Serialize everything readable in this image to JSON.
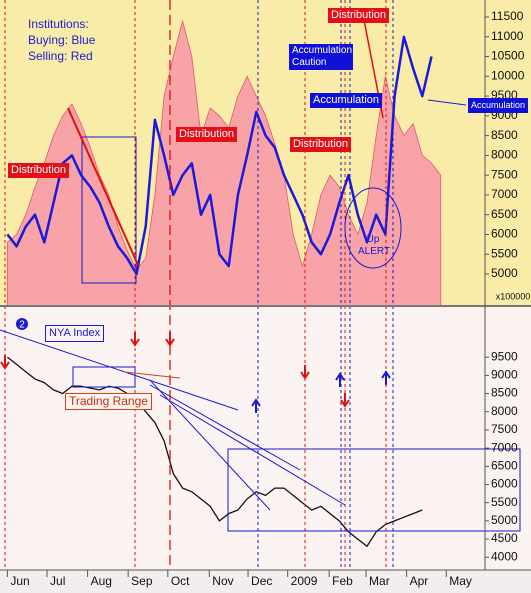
{
  "chart_data": [
    {
      "type": "area_line",
      "note": [
        "Institutions:",
        "Buying: Blue",
        "Selling: Red"
      ],
      "axis_note": "x100000",
      "annotations": [
        "Distribution",
        "Distribution",
        "Distribution",
        "Distribution",
        "Accumulation",
        "Accumulation Caution",
        "Accumulation",
        "Up ALERT"
      ],
      "x": [
        0,
        1,
        2,
        3,
        4,
        5,
        6,
        7,
        8,
        9,
        10,
        11,
        12,
        13,
        14,
        15,
        16,
        17,
        18,
        19,
        20,
        21,
        22,
        23,
        24,
        25,
        26,
        27,
        28,
        29,
        30,
        31,
        32,
        33,
        34,
        35,
        36,
        37,
        38,
        39,
        40,
        41,
        42,
        43,
        44,
        45,
        46,
        47
      ],
      "series": [
        {
          "name": "Selling",
          "color": "#f7a3a8",
          "values": [
            5800,
            6000,
            6500,
            7200,
            7800,
            8500,
            9000,
            9300,
            8800,
            8200,
            7500,
            7000,
            6200,
            5600,
            5100,
            5400,
            7000,
            9500,
            10500,
            11400,
            10500,
            8500,
            9200,
            9000,
            8700,
            9500,
            10000,
            9500,
            9000,
            8300,
            7500,
            6000,
            5200,
            6000,
            7000,
            7500,
            7200,
            6500,
            6000,
            6800,
            8500,
            10000,
            9000,
            8500,
            8800,
            8000,
            7800,
            7500
          ]
        },
        {
          "name": "Buying",
          "color": "#1a1adb",
          "values": [
            6000,
            5700,
            6200,
            6500,
            5800,
            6800,
            7800,
            8000,
            7500,
            7200,
            6800,
            6200,
            5700,
            5400,
            5000,
            6200,
            8900,
            8000,
            7000,
            7500,
            7800,
            6500,
            7000,
            5500,
            5200,
            7000,
            8000,
            9100,
            8500,
            8200,
            7500,
            7000,
            6500,
            5800,
            5500,
            6000,
            6800,
            7500,
            6500,
            5800,
            6500,
            6000,
            9500,
            11000,
            10200,
            9500,
            10500,
            null
          ]
        }
      ],
      "xlim": [
        -0.8,
        51.8
      ],
      "ylim": [
        4190,
        11930
      ],
      "yticks": [
        5000,
        5500,
        6000,
        6500,
        7000,
        7500,
        8000,
        8500,
        9000,
        9500,
        10000,
        10500,
        11000,
        11500
      ]
    },
    {
      "type": "line",
      "annotations": [
        "2",
        "NYA Index",
        "Trading Range"
      ],
      "x": [
        0,
        1,
        2,
        3,
        4,
        5,
        6,
        7,
        8,
        9,
        10,
        11,
        12,
        13,
        14,
        15,
        16,
        17,
        18,
        19,
        20,
        21,
        22,
        23,
        24,
        25,
        26,
        27,
        28,
        29,
        30,
        31,
        32,
        33,
        34,
        35,
        36,
        37,
        38,
        39,
        40,
        41,
        42,
        43,
        44,
        45
      ],
      "values": [
        9500,
        9300,
        9100,
        8900,
        8800,
        8600,
        8500,
        8700,
        8700,
        8650,
        8600,
        8700,
        8650,
        8500,
        8300,
        8000,
        7700,
        7200,
        6300,
        5900,
        5800,
        5600,
        5400,
        5000,
        5200,
        5300,
        5600,
        5800,
        5700,
        5900,
        5900,
        5700,
        5500,
        5300,
        5400,
        5200,
        5000,
        4700,
        4500,
        4300,
        4700,
        4900,
        5000,
        5100,
        5200,
        5300
      ],
      "color": "#111111",
      "xlim": [
        -0.8,
        51.8
      ],
      "xticks": [
        {
          "value": 0,
          "label": "Jun"
        },
        {
          "value": 4.3,
          "label": "Jul"
        },
        {
          "value": 8.7,
          "label": "Aug"
        },
        {
          "value": 13.1,
          "label": "Sep"
        },
        {
          "value": 17.4,
          "label": "Oct"
        },
        {
          "value": 21.9,
          "label": "Nov"
        },
        {
          "value": 26.1,
          "label": "Dec"
        },
        {
          "value": 30.4,
          "label": "2009"
        },
        {
          "value": 34.9,
          "label": "Feb"
        },
        {
          "value": 38.9,
          "label": "Mar"
        },
        {
          "value": 43.3,
          "label": "Apr"
        },
        {
          "value": 47.6,
          "label": "May"
        }
      ],
      "ylim": [
        3650,
        10850
      ],
      "yticks": [
        4000,
        4500,
        5000,
        5500,
        6000,
        6500,
        7000,
        7500,
        8000,
        8500,
        9000,
        9500
      ]
    }
  ]
}
